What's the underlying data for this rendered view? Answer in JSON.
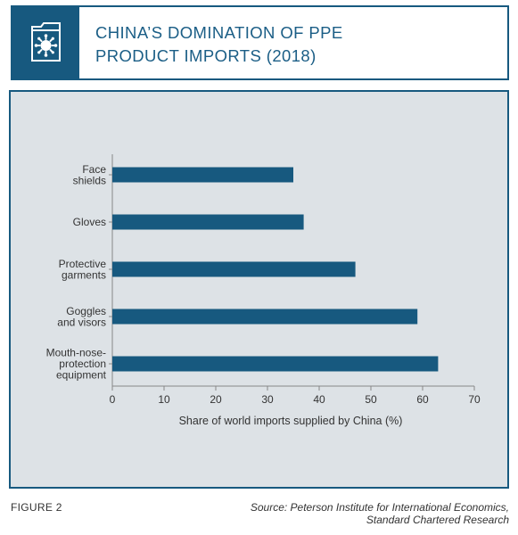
{
  "header": {
    "icon": "virus-icon",
    "title_lines": [
      "China’s domination of PPE",
      "product imports (2018)"
    ]
  },
  "colors": {
    "accent": "#17597f",
    "panel_bg": "#dde2e6",
    "bar": "#17597f"
  },
  "chart_data": {
    "type": "bar",
    "orientation": "horizontal",
    "categories": [
      [
        "Face",
        "shields"
      ],
      [
        "Gloves"
      ],
      [
        "Protective",
        "garments"
      ],
      [
        "Goggles",
        "and visors"
      ],
      [
        "Mouth-nose-",
        "protection",
        "equipment"
      ]
    ],
    "values": [
      35,
      37,
      47,
      59,
      63
    ],
    "xlabel": "Share of world imports supplied by China (%)",
    "ylabel": "",
    "xlim": [
      0,
      70
    ],
    "xticks": [
      0,
      10,
      20,
      30,
      40,
      50,
      60,
      70
    ],
    "grid": false
  },
  "footer": {
    "figure_label": "FIGURE 2",
    "source_lines": [
      "Source: Peterson Institute for International Economics,",
      "Standard Chartered Research"
    ]
  }
}
